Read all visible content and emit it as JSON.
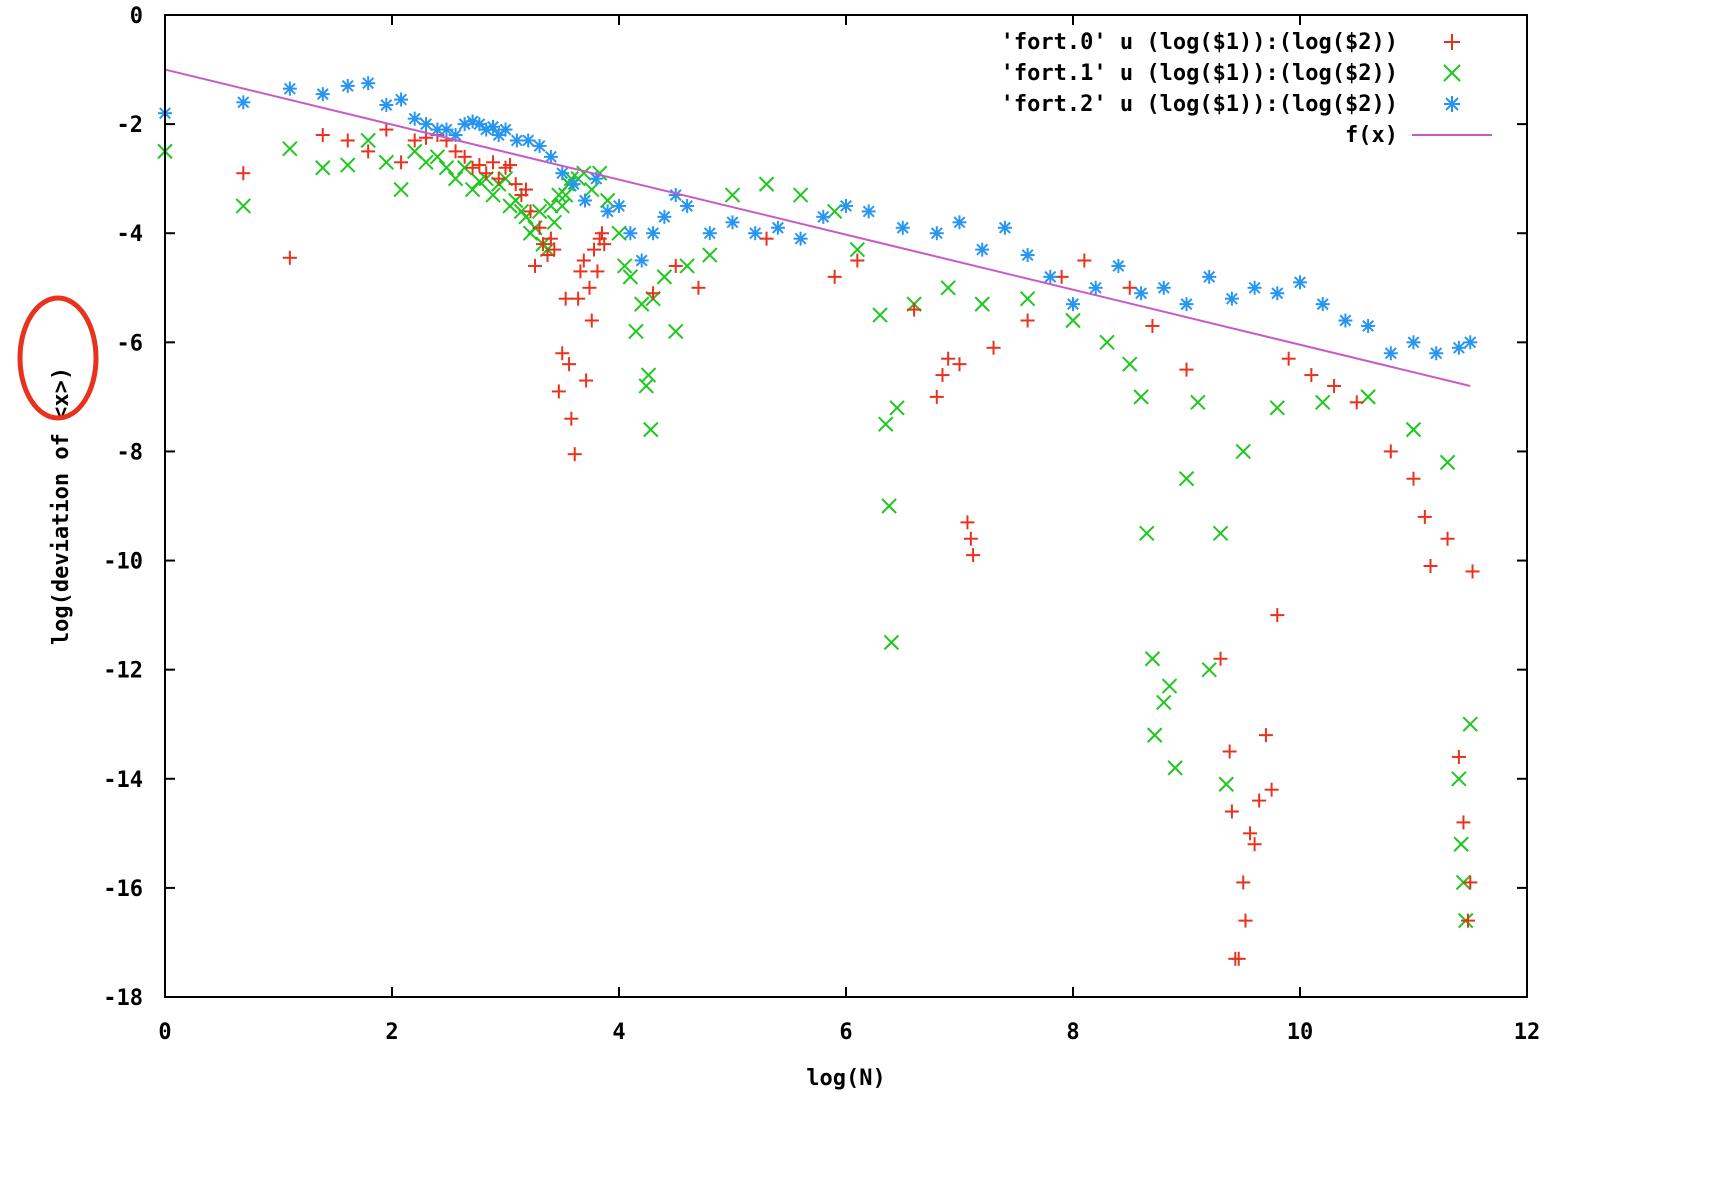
{
  "chart_data": {
    "type": "scatter",
    "title": "",
    "xlabel": "log(N)",
    "ylabel": "log(deviation of <x>)",
    "xlim": [
      0,
      12
    ],
    "ylim": [
      -18,
      0
    ],
    "xticks": [
      0,
      2,
      4,
      6,
      8,
      10,
      12
    ],
    "yticks": [
      0,
      -2,
      -4,
      -6,
      -8,
      -10,
      -12,
      -14,
      -16,
      -18
    ],
    "grid": false,
    "legend_position": "top-right",
    "annotation": "red hand-drawn circle around <x> in the y-axis label",
    "colors": {
      "fort0": "#e8321e",
      "fort1": "#1ec81e",
      "fort2": "#2896f0",
      "fx": "#c85ac8",
      "annotation": "#e8321e"
    },
    "series": [
      {
        "name": "'fort.0' u (log($1)):(log($2))",
        "marker": "plus",
        "points": [
          [
            0.69,
            -2.9
          ],
          [
            1.1,
            -4.45
          ],
          [
            1.39,
            -2.2
          ],
          [
            1.61,
            -2.3
          ],
          [
            1.79,
            -2.5
          ],
          [
            1.95,
            -2.1
          ],
          [
            2.08,
            -2.7
          ],
          [
            2.2,
            -2.3
          ],
          [
            2.3,
            -2.25
          ],
          [
            2.4,
            -2.2
          ],
          [
            2.48,
            -2.3
          ],
          [
            2.56,
            -2.5
          ],
          [
            2.64,
            -2.6
          ],
          [
            2.71,
            -2.8
          ],
          [
            2.77,
            -2.75
          ],
          [
            2.83,
            -2.9
          ],
          [
            2.89,
            -2.7
          ],
          [
            2.94,
            -3.0
          ],
          [
            3.0,
            -2.8
          ],
          [
            3.04,
            -2.75
          ],
          [
            3.09,
            -3.1
          ],
          [
            3.14,
            -3.3
          ],
          [
            3.18,
            -3.2
          ],
          [
            3.22,
            -3.6
          ],
          [
            3.26,
            -4.6
          ],
          [
            3.3,
            -3.9
          ],
          [
            3.33,
            -4.2
          ],
          [
            3.37,
            -4.4
          ],
          [
            3.4,
            -4.1
          ],
          [
            3.43,
            -4.3
          ],
          [
            3.47,
            -6.9
          ],
          [
            3.5,
            -6.2
          ],
          [
            3.53,
            -5.2
          ],
          [
            3.56,
            -6.4
          ],
          [
            3.58,
            -7.4
          ],
          [
            3.61,
            -8.05
          ],
          [
            3.64,
            -5.2
          ],
          [
            3.66,
            -4.7
          ],
          [
            3.69,
            -4.5
          ],
          [
            3.71,
            -6.7
          ],
          [
            3.74,
            -5.0
          ],
          [
            3.76,
            -5.6
          ],
          [
            3.78,
            -4.3
          ],
          [
            3.81,
            -4.7
          ],
          [
            3.83,
            -4.1
          ],
          [
            3.85,
            -4.0
          ],
          [
            3.87,
            -4.2
          ],
          [
            4.3,
            -5.1
          ],
          [
            4.5,
            -4.6
          ],
          [
            4.7,
            -5.0
          ],
          [
            5.3,
            -4.1
          ],
          [
            5.9,
            -4.8
          ],
          [
            6.1,
            -4.5
          ],
          [
            6.6,
            -5.4
          ],
          [
            6.8,
            -7.0
          ],
          [
            6.85,
            -6.6
          ],
          [
            6.9,
            -6.3
          ],
          [
            7.0,
            -6.4
          ],
          [
            7.07,
            -9.3
          ],
          [
            7.1,
            -9.6
          ],
          [
            7.12,
            -9.9
          ],
          [
            7.3,
            -6.1
          ],
          [
            7.6,
            -5.6
          ],
          [
            7.9,
            -4.8
          ],
          [
            8.1,
            -4.5
          ],
          [
            8.5,
            -5.0
          ],
          [
            8.7,
            -5.7
          ],
          [
            9.0,
            -6.5
          ],
          [
            9.3,
            -11.8
          ],
          [
            9.38,
            -13.5
          ],
          [
            9.4,
            -14.6
          ],
          [
            9.43,
            -17.3
          ],
          [
            9.46,
            -17.3
          ],
          [
            9.5,
            -15.9
          ],
          [
            9.52,
            -16.6
          ],
          [
            9.56,
            -15.0
          ],
          [
            9.6,
            -15.2
          ],
          [
            9.64,
            -14.4
          ],
          [
            9.7,
            -13.2
          ],
          [
            9.75,
            -14.2
          ],
          [
            9.8,
            -11.0
          ],
          [
            9.9,
            -6.3
          ],
          [
            10.1,
            -6.6
          ],
          [
            10.3,
            -6.8
          ],
          [
            10.5,
            -7.1
          ],
          [
            10.8,
            -8.0
          ],
          [
            11.0,
            -8.5
          ],
          [
            11.1,
            -9.2
          ],
          [
            11.15,
            -10.1
          ],
          [
            11.3,
            -9.6
          ],
          [
            11.4,
            -13.6
          ],
          [
            11.44,
            -14.8
          ],
          [
            11.48,
            -16.6
          ],
          [
            11.5,
            -15.9
          ],
          [
            11.52,
            -10.2
          ]
        ]
      },
      {
        "name": "'fort.1' u (log($1)):(log($2))",
        "marker": "cross",
        "points": [
          [
            0.0,
            -2.5
          ],
          [
            0.69,
            -3.5
          ],
          [
            1.1,
            -2.45
          ],
          [
            1.39,
            -2.8
          ],
          [
            1.61,
            -2.75
          ],
          [
            1.79,
            -2.3
          ],
          [
            1.95,
            -2.7
          ],
          [
            2.08,
            -3.2
          ],
          [
            2.2,
            -2.5
          ],
          [
            2.3,
            -2.7
          ],
          [
            2.4,
            -2.6
          ],
          [
            2.48,
            -2.8
          ],
          [
            2.56,
            -3.0
          ],
          [
            2.64,
            -2.8
          ],
          [
            2.71,
            -3.2
          ],
          [
            2.77,
            -3.05
          ],
          [
            2.83,
            -3.0
          ],
          [
            2.89,
            -3.3
          ],
          [
            2.94,
            -3.1
          ],
          [
            3.0,
            -3.0
          ],
          [
            3.04,
            -3.5
          ],
          [
            3.09,
            -3.4
          ],
          [
            3.14,
            -3.6
          ],
          [
            3.18,
            -3.7
          ],
          [
            3.22,
            -4.0
          ],
          [
            3.26,
            -3.9
          ],
          [
            3.3,
            -3.6
          ],
          [
            3.33,
            -4.2
          ],
          [
            3.37,
            -4.3
          ],
          [
            3.4,
            -3.5
          ],
          [
            3.43,
            -3.8
          ],
          [
            3.47,
            -3.3
          ],
          [
            3.5,
            -3.5
          ],
          [
            3.53,
            -3.3
          ],
          [
            3.56,
            -3.1
          ],
          [
            3.58,
            -3.0
          ],
          [
            3.64,
            -3.0
          ],
          [
            3.69,
            -2.9
          ],
          [
            3.76,
            -3.2
          ],
          [
            3.83,
            -2.9
          ],
          [
            3.9,
            -3.4
          ],
          [
            4.0,
            -4.0
          ],
          [
            4.05,
            -4.6
          ],
          [
            4.1,
            -4.8
          ],
          [
            4.15,
            -5.8
          ],
          [
            4.2,
            -5.3
          ],
          [
            4.24,
            -6.8
          ],
          [
            4.26,
            -6.6
          ],
          [
            4.28,
            -7.6
          ],
          [
            4.3,
            -5.2
          ],
          [
            4.4,
            -4.8
          ],
          [
            4.5,
            -5.8
          ],
          [
            4.6,
            -4.6
          ],
          [
            4.8,
            -4.4
          ],
          [
            5.0,
            -3.3
          ],
          [
            5.3,
            -3.1
          ],
          [
            5.6,
            -3.3
          ],
          [
            5.9,
            -3.6
          ],
          [
            6.1,
            -4.3
          ],
          [
            6.3,
            -5.5
          ],
          [
            6.35,
            -7.5
          ],
          [
            6.38,
            -9.0
          ],
          [
            6.4,
            -11.5
          ],
          [
            6.45,
            -7.2
          ],
          [
            6.6,
            -5.3
          ],
          [
            6.9,
            -5.0
          ],
          [
            7.2,
            -5.3
          ],
          [
            7.6,
            -5.2
          ],
          [
            8.0,
            -5.6
          ],
          [
            8.3,
            -6.0
          ],
          [
            8.5,
            -6.4
          ],
          [
            8.6,
            -7.0
          ],
          [
            8.65,
            -9.5
          ],
          [
            8.7,
            -11.8
          ],
          [
            8.72,
            -13.2
          ],
          [
            8.8,
            -12.6
          ],
          [
            8.85,
            -12.3
          ],
          [
            8.9,
            -13.8
          ],
          [
            9.0,
            -8.5
          ],
          [
            9.1,
            -7.1
          ],
          [
            9.2,
            -12.0
          ],
          [
            9.3,
            -9.5
          ],
          [
            9.35,
            -14.1
          ],
          [
            9.5,
            -8.0
          ],
          [
            9.8,
            -7.2
          ],
          [
            10.2,
            -7.1
          ],
          [
            10.6,
            -7.0
          ],
          [
            11.0,
            -7.6
          ],
          [
            11.3,
            -8.2
          ],
          [
            11.4,
            -14.0
          ],
          [
            11.42,
            -15.2
          ],
          [
            11.44,
            -15.9
          ],
          [
            11.46,
            -16.6
          ],
          [
            11.5,
            -13.0
          ]
        ]
      },
      {
        "name": "'fort.2' u (log($1)):(log($2))",
        "marker": "star",
        "points": [
          [
            0.0,
            -1.8
          ],
          [
            0.69,
            -1.6
          ],
          [
            1.1,
            -1.35
          ],
          [
            1.39,
            -1.45
          ],
          [
            1.61,
            -1.3
          ],
          [
            1.79,
            -1.25
          ],
          [
            1.95,
            -1.65
          ],
          [
            2.08,
            -1.55
          ],
          [
            2.2,
            -1.9
          ],
          [
            2.3,
            -2.0
          ],
          [
            2.4,
            -2.1
          ],
          [
            2.48,
            -2.1
          ],
          [
            2.56,
            -2.2
          ],
          [
            2.64,
            -2.0
          ],
          [
            2.71,
            -1.95
          ],
          [
            2.77,
            -2.0
          ],
          [
            2.83,
            -2.1
          ],
          [
            2.89,
            -2.05
          ],
          [
            2.94,
            -2.2
          ],
          [
            3.0,
            -2.1
          ],
          [
            3.1,
            -2.3
          ],
          [
            3.2,
            -2.3
          ],
          [
            3.3,
            -2.4
          ],
          [
            3.4,
            -2.6
          ],
          [
            3.5,
            -2.9
          ],
          [
            3.6,
            -3.1
          ],
          [
            3.7,
            -3.4
          ],
          [
            3.8,
            -3.0
          ],
          [
            3.9,
            -3.6
          ],
          [
            4.0,
            -3.5
          ],
          [
            4.1,
            -4.0
          ],
          [
            4.2,
            -4.5
          ],
          [
            4.3,
            -4.0
          ],
          [
            4.4,
            -3.7
          ],
          [
            4.5,
            -3.3
          ],
          [
            4.6,
            -3.5
          ],
          [
            4.8,
            -4.0
          ],
          [
            5.0,
            -3.8
          ],
          [
            5.2,
            -4.0
          ],
          [
            5.4,
            -3.9
          ],
          [
            5.6,
            -4.1
          ],
          [
            5.8,
            -3.7
          ],
          [
            6.0,
            -3.5
          ],
          [
            6.2,
            -3.6
          ],
          [
            6.5,
            -3.9
          ],
          [
            6.8,
            -4.0
          ],
          [
            7.0,
            -3.8
          ],
          [
            7.2,
            -4.3
          ],
          [
            7.4,
            -3.9
          ],
          [
            7.6,
            -4.4
          ],
          [
            7.8,
            -4.8
          ],
          [
            8.0,
            -5.3
          ],
          [
            8.2,
            -5.0
          ],
          [
            8.4,
            -4.6
          ],
          [
            8.6,
            -5.1
          ],
          [
            8.8,
            -5.0
          ],
          [
            9.0,
            -5.3
          ],
          [
            9.2,
            -4.8
          ],
          [
            9.4,
            -5.2
          ],
          [
            9.6,
            -5.0
          ],
          [
            9.8,
            -5.1
          ],
          [
            10.0,
            -4.9
          ],
          [
            10.2,
            -5.3
          ],
          [
            10.4,
            -5.6
          ],
          [
            10.6,
            -5.7
          ],
          [
            10.8,
            -6.2
          ],
          [
            11.0,
            -6.0
          ],
          [
            11.2,
            -6.2
          ],
          [
            11.4,
            -6.1
          ],
          [
            11.5,
            -6.0
          ]
        ]
      },
      {
        "name": "f(x)",
        "marker": "line",
        "points": [
          [
            0.0,
            -1.0
          ],
          [
            11.5,
            -6.8
          ]
        ]
      }
    ]
  }
}
